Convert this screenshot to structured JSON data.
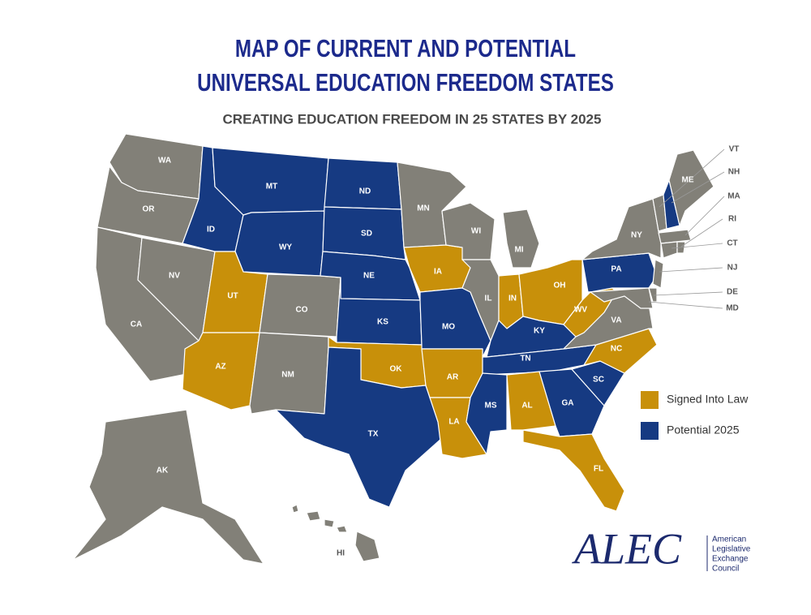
{
  "title": [
    "MAP OF CURRENT AND POTENTIAL",
    "UNIVERSAL EDUCATION FREEDOM STATES"
  ],
  "subtitle": "CREATING EDUCATION FREEDOM IN 25 STATES BY 2025",
  "states": [
    "WA",
    "OR",
    "CA",
    "NV",
    "ID",
    "MT",
    "WY",
    "UT",
    "AZ",
    "CO",
    "NM",
    "ND",
    "SD",
    "NE",
    "KS",
    "OK",
    "TX",
    "MN",
    "IA",
    "MO",
    "AR",
    "LA",
    "WI",
    "IL",
    "MI",
    "IN",
    "OH",
    "KY",
    "TN",
    "MS",
    "AL",
    "GA",
    "FL",
    "SC",
    "NC",
    "VA",
    "WV",
    "PA",
    "NY",
    "NJ",
    "DE",
    "MD",
    "VT",
    "NH",
    "ME",
    "MA",
    "CT",
    "RI",
    "AK",
    "HI"
  ],
  "legend": [
    {
      "label": "Signed Into Law",
      "color": "#c8900a",
      "states": [
        "UT",
        "AZ",
        "OK",
        "AR",
        "LA",
        "IA",
        "IN",
        "OH",
        "WV",
        "AL",
        "FL",
        "NC"
      ]
    },
    {
      "label": "Potential 2025",
      "color": "#163a82",
      "states": [
        "ID",
        "MT",
        "WY",
        "ND",
        "SD",
        "NE",
        "KS",
        "MO",
        "TX",
        "MS",
        "TN",
        "KY",
        "GA",
        "SC",
        "PA",
        "NH"
      ]
    }
  ],
  "other_states": {
    "color": "#828078",
    "states": [
      "WA",
      "OR",
      "CA",
      "NV",
      "CO",
      "NM",
      "MN",
      "WI",
      "IL",
      "MI",
      "VA",
      "NY",
      "NJ",
      "DE",
      "MD",
      "VT",
      "ME",
      "MA",
      "CT",
      "RI",
      "AK",
      "HI"
    ]
  },
  "logo": {
    "name": "ALEC",
    "lines": [
      "American",
      "Legislative",
      "Exchange",
      "Council"
    ]
  }
}
